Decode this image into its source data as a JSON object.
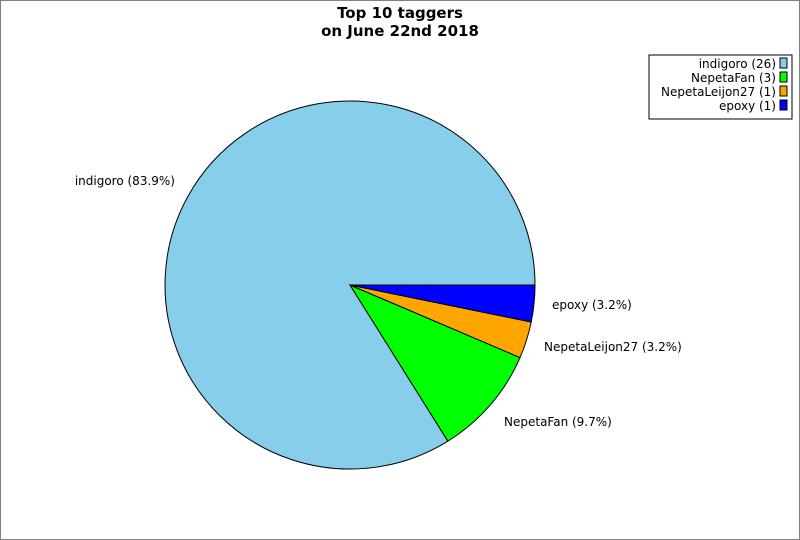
{
  "chart_data": {
    "type": "pie",
    "title_lines": [
      "Top 10 taggers",
      "on June 22nd 2018"
    ],
    "slices": [
      {
        "name": "indigoro",
        "value": 26,
        "percent_label": "indigoro (83.9%)",
        "legend_label": "indigoro (26)",
        "color": "#87CEEB"
      },
      {
        "name": "NepetaFan",
        "value": 3,
        "percent_label": "NepetaFan (9.7%)",
        "legend_label": "NepetaFan (3)",
        "color": "#00FF00"
      },
      {
        "name": "NepetaLeijon27",
        "value": 1,
        "percent_label": "NepetaLeijon27 (3.2%)",
        "legend_label": "NepetaLeijon27 (1)",
        "color": "#FFA500"
      },
      {
        "name": "epoxy",
        "value": 1,
        "percent_label": "epoxy (3.2%)",
        "legend_label": "epoxy (1)",
        "color": "#0000FF"
      }
    ],
    "legend_position": "top-right"
  }
}
